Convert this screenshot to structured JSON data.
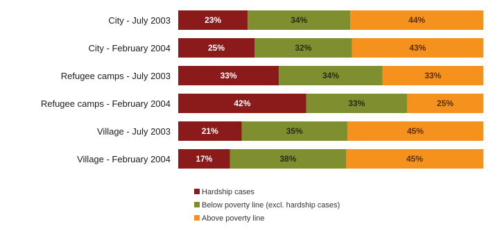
{
  "chart_data": {
    "type": "bar",
    "orientation": "horizontal",
    "stacked": true,
    "percent_stacked": true,
    "categories": [
      "City - July 2003",
      "City - February 2004",
      "Refugee camps - July 2003",
      "Refugee camps - February 2004",
      "Village - July 2003",
      "Village - February 2004"
    ],
    "series": [
      {
        "name": "Hardship cases",
        "color": "#8b1a1a",
        "label_color": "#ffffff",
        "values": [
          23,
          25,
          33,
          42,
          21,
          17
        ],
        "labels": [
          "23%",
          "25%",
          "33%",
          "42%",
          "21%",
          "17%"
        ]
      },
      {
        "name": "Below poverty line (excl. hardship cases)",
        "color": "#7f8f2f",
        "label_color": "#2a2a10",
        "values": [
          34,
          32,
          34,
          33,
          35,
          38
        ],
        "labels": [
          "34%",
          "32%",
          "34%",
          "33%",
          "35%",
          "38%"
        ]
      },
      {
        "name": "Above poverty line",
        "color": "#f5921e",
        "label_color": "#5a3000",
        "values": [
          44,
          43,
          33,
          25,
          45,
          45
        ],
        "labels": [
          "44%",
          "43%",
          "33%",
          "25%",
          "45%",
          "45%"
        ]
      }
    ],
    "title": "",
    "xlabel": "",
    "ylabel": "",
    "grid": false,
    "legend_position": "bottom"
  }
}
